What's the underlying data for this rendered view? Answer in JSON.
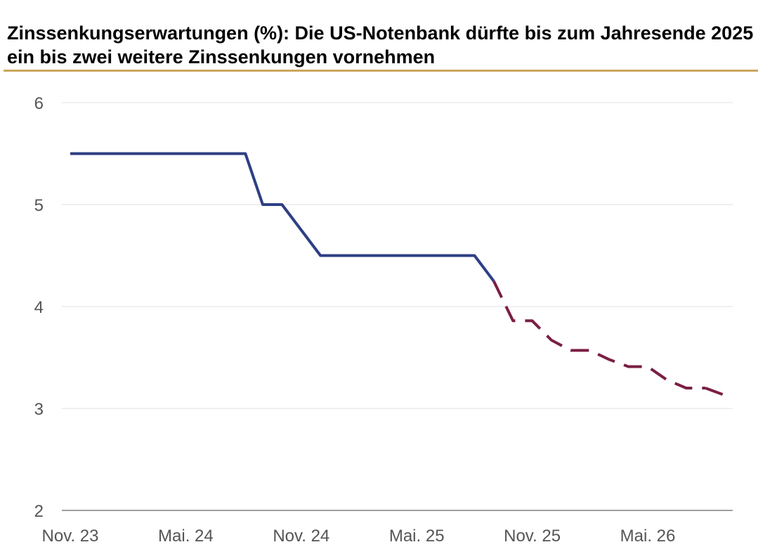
{
  "chart_data": {
    "type": "line",
    "title": "Zinssenkungserwartungen (%): Die US-Notenbank dürfte bis zum Jahresende 2025 ein bis zwei weitere Zinssenkungen vornehmen",
    "xlabel": "",
    "ylabel": "",
    "x_tick_labels": [
      "Nov. 23",
      "Mai. 24",
      "Nov. 24",
      "Mai. 25",
      "Nov. 25",
      "Mai. 26"
    ],
    "x_tick_positions": [
      0,
      6,
      12,
      18,
      24,
      30
    ],
    "xlim": [
      0,
      34
    ],
    "ylim": [
      2,
      6
    ],
    "y_ticks": [
      2,
      3,
      4,
      5,
      6
    ],
    "y_tick_labels": [
      "2",
      "3",
      "4",
      "5",
      "6"
    ],
    "grid": true,
    "legend": "none",
    "series": [
      {
        "style": "solid",
        "color": "#2e3f84",
        "x": [
          0,
          9.1,
          10.0,
          11.0,
          13.0,
          21.0,
          22.0
        ],
        "y": [
          5.5,
          5.5,
          5.0,
          5.0,
          4.5,
          4.5,
          4.25
        ]
      },
      {
        "style": "dashed",
        "color": "#7a1f45",
        "x": [
          22.0,
          23.0,
          24.0,
          25.0,
          26.0,
          27.0,
          28.0,
          29.0,
          30.0,
          31.0,
          32.0,
          33.0
        ],
        "y": [
          4.25,
          3.86,
          3.86,
          3.67,
          3.57,
          3.57,
          3.48,
          3.41,
          3.41,
          3.28,
          3.2,
          3.2
        ]
      },
      {
        "style": "dashed",
        "color": "#7a1f45",
        "x": [
          33.0,
          34.0
        ],
        "y": [
          3.2,
          3.13
        ]
      }
    ],
    "colors": {
      "grid": "#e6e6e6",
      "axis": "#a0a0a0",
      "title_rule": "#c9a85c"
    }
  }
}
